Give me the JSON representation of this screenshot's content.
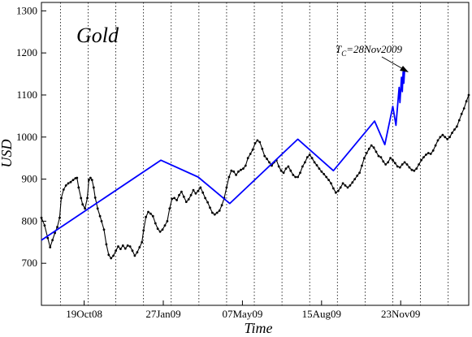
{
  "chart_data": {
    "type": "line",
    "title": "Gold",
    "xlabel": "Time",
    "ylabel": "USD",
    "ylim": [
      600,
      1320
    ],
    "xlim": [
      "2008-08-26",
      "2010-02-17"
    ],
    "yticks": [
      700,
      800,
      900,
      1000,
      1100,
      1200,
      1300
    ],
    "xtick_labels": [
      "19Oct08",
      "27Jan09",
      "07May09",
      "15Aug09",
      "23Nov09"
    ],
    "xtick_dates": [
      "2008-10-19",
      "2009-01-27",
      "2009-05-07",
      "2009-08-15",
      "2009-11-23"
    ],
    "grid_x_dates": [
      "2008-09-19",
      "2008-10-24",
      "2008-11-28",
      "2009-01-02",
      "2009-02-06",
      "2009-03-13",
      "2009-04-17",
      "2009-05-22",
      "2009-06-26",
      "2009-07-31",
      "2009-09-04",
      "2009-10-09",
      "2009-11-13",
      "2009-12-18",
      "2010-01-22"
    ],
    "annotation": {
      "prefix": "T",
      "subscript": "C",
      "suffix": "=28Nov2009",
      "date": "2009-11-28",
      "value": 1162
    },
    "series": [
      {
        "color": "#000000",
        "style": "line-dots",
        "points": [
          [
            "2008-08-26",
            808
          ],
          [
            "2008-08-30",
            790
          ],
          [
            "2008-09-03",
            760
          ],
          [
            "2008-09-06",
            738
          ],
          [
            "2008-09-09",
            755
          ],
          [
            "2008-09-12",
            772
          ],
          [
            "2008-09-15",
            786
          ],
          [
            "2008-09-18",
            808
          ],
          [
            "2008-09-20",
            855
          ],
          [
            "2008-09-23",
            875
          ],
          [
            "2008-09-26",
            885
          ],
          [
            "2008-09-29",
            890
          ],
          [
            "2008-10-02",
            893
          ],
          [
            "2008-10-05",
            898
          ],
          [
            "2008-10-08",
            902
          ],
          [
            "2008-10-10",
            903
          ],
          [
            "2008-10-12",
            880
          ],
          [
            "2008-10-15",
            855
          ],
          [
            "2008-10-17",
            840
          ],
          [
            "2008-10-20",
            830
          ],
          [
            "2008-10-23",
            855
          ],
          [
            "2008-10-25",
            898
          ],
          [
            "2008-10-27",
            903
          ],
          [
            "2008-10-29",
            898
          ],
          [
            "2008-10-31",
            880
          ],
          [
            "2008-11-02",
            856
          ],
          [
            "2008-11-05",
            830
          ],
          [
            "2008-11-08",
            812
          ],
          [
            "2008-11-10",
            800
          ],
          [
            "2008-11-13",
            780
          ],
          [
            "2008-11-16",
            745
          ],
          [
            "2008-11-19",
            720
          ],
          [
            "2008-11-22",
            712
          ],
          [
            "2008-11-25",
            718
          ],
          [
            "2008-11-28",
            730
          ],
          [
            "2008-12-01",
            740
          ],
          [
            "2008-12-04",
            734
          ],
          [
            "2008-12-07",
            742
          ],
          [
            "2008-12-10",
            735
          ],
          [
            "2008-12-13",
            742
          ],
          [
            "2008-12-16",
            740
          ],
          [
            "2008-12-19",
            730
          ],
          [
            "2008-12-22",
            718
          ],
          [
            "2008-12-25",
            726
          ],
          [
            "2008-12-28",
            738
          ],
          [
            "2008-12-31",
            750
          ],
          [
            "2009-01-02",
            778
          ],
          [
            "2009-01-05",
            810
          ],
          [
            "2009-01-08",
            822
          ],
          [
            "2009-01-11",
            818
          ],
          [
            "2009-01-14",
            812
          ],
          [
            "2009-01-17",
            795
          ],
          [
            "2009-01-20",
            782
          ],
          [
            "2009-01-23",
            775
          ],
          [
            "2009-01-26",
            780
          ],
          [
            "2009-01-29",
            790
          ],
          [
            "2009-02-01",
            800
          ],
          [
            "2009-02-04",
            830
          ],
          [
            "2009-02-07",
            853
          ],
          [
            "2009-02-10",
            855
          ],
          [
            "2009-02-13",
            850
          ],
          [
            "2009-02-16",
            862
          ],
          [
            "2009-02-19",
            870
          ],
          [
            "2009-02-22",
            858
          ],
          [
            "2009-02-25",
            846
          ],
          [
            "2009-02-28",
            852
          ],
          [
            "2009-03-03",
            862
          ],
          [
            "2009-03-06",
            874
          ],
          [
            "2009-03-09",
            866
          ],
          [
            "2009-03-12",
            872
          ],
          [
            "2009-03-15",
            880
          ],
          [
            "2009-03-18",
            868
          ],
          [
            "2009-03-21",
            855
          ],
          [
            "2009-03-24",
            845
          ],
          [
            "2009-03-27",
            832
          ],
          [
            "2009-03-30",
            820
          ],
          [
            "2009-04-02",
            816
          ],
          [
            "2009-04-05",
            820
          ],
          [
            "2009-04-08",
            825
          ],
          [
            "2009-04-11",
            838
          ],
          [
            "2009-04-14",
            855
          ],
          [
            "2009-04-17",
            880
          ],
          [
            "2009-04-20",
            905
          ],
          [
            "2009-04-23",
            920
          ],
          [
            "2009-04-26",
            918
          ],
          [
            "2009-04-29",
            910
          ],
          [
            "2009-05-02",
            918
          ],
          [
            "2009-05-05",
            922
          ],
          [
            "2009-05-08",
            925
          ],
          [
            "2009-05-11",
            932
          ],
          [
            "2009-05-14",
            950
          ],
          [
            "2009-05-17",
            960
          ],
          [
            "2009-05-20",
            970
          ],
          [
            "2009-05-23",
            985
          ],
          [
            "2009-05-26",
            992
          ],
          [
            "2009-05-29",
            988
          ],
          [
            "2009-06-01",
            972
          ],
          [
            "2009-06-04",
            955
          ],
          [
            "2009-06-07",
            948
          ],
          [
            "2009-06-10",
            940
          ],
          [
            "2009-06-13",
            932
          ],
          [
            "2009-06-16",
            940
          ],
          [
            "2009-06-19",
            945
          ],
          [
            "2009-06-22",
            930
          ],
          [
            "2009-06-25",
            920
          ],
          [
            "2009-06-28",
            915
          ],
          [
            "2009-07-01",
            925
          ],
          [
            "2009-07-04",
            930
          ],
          [
            "2009-07-07",
            920
          ],
          [
            "2009-07-10",
            910
          ],
          [
            "2009-07-13",
            905
          ],
          [
            "2009-07-16",
            905
          ],
          [
            "2009-07-19",
            915
          ],
          [
            "2009-07-22",
            930
          ],
          [
            "2009-07-25",
            940
          ],
          [
            "2009-07-28",
            952
          ],
          [
            "2009-07-31",
            958
          ],
          [
            "2009-08-03",
            950
          ],
          [
            "2009-08-06",
            940
          ],
          [
            "2009-08-09",
            933
          ],
          [
            "2009-08-12",
            925
          ],
          [
            "2009-08-15",
            918
          ],
          [
            "2009-08-18",
            912
          ],
          [
            "2009-08-21",
            905
          ],
          [
            "2009-08-24",
            898
          ],
          [
            "2009-08-27",
            890
          ],
          [
            "2009-08-30",
            878
          ],
          [
            "2009-09-02",
            868
          ],
          [
            "2009-09-05",
            872
          ],
          [
            "2009-09-08",
            880
          ],
          [
            "2009-09-11",
            890
          ],
          [
            "2009-09-14",
            885
          ],
          [
            "2009-09-17",
            880
          ],
          [
            "2009-09-20",
            885
          ],
          [
            "2009-09-23",
            892
          ],
          [
            "2009-09-26",
            900
          ],
          [
            "2009-09-29",
            908
          ],
          [
            "2009-10-02",
            915
          ],
          [
            "2009-10-05",
            932
          ],
          [
            "2009-10-08",
            950
          ],
          [
            "2009-10-11",
            962
          ],
          [
            "2009-10-14",
            972
          ],
          [
            "2009-10-17",
            980
          ],
          [
            "2009-10-20",
            975
          ],
          [
            "2009-10-23",
            965
          ],
          [
            "2009-10-26",
            955
          ],
          [
            "2009-10-29",
            952
          ],
          [
            "2009-11-01",
            942
          ],
          [
            "2009-11-04",
            935
          ],
          [
            "2009-11-07",
            940
          ],
          [
            "2009-11-10",
            950
          ],
          [
            "2009-11-13",
            945
          ],
          [
            "2009-11-16",
            938
          ],
          [
            "2009-11-19",
            930
          ],
          [
            "2009-11-22",
            928
          ],
          [
            "2009-11-25",
            935
          ],
          [
            "2009-11-28",
            940
          ],
          [
            "2009-12-01",
            935
          ],
          [
            "2009-12-04",
            928
          ],
          [
            "2009-12-07",
            922
          ],
          [
            "2009-12-10",
            920
          ],
          [
            "2009-12-13",
            925
          ],
          [
            "2009-12-16",
            935
          ],
          [
            "2009-12-19",
            945
          ],
          [
            "2009-12-22",
            952
          ],
          [
            "2009-12-25",
            958
          ],
          [
            "2009-12-28",
            962
          ],
          [
            "2009-12-31",
            960
          ],
          [
            "2010-01-03",
            968
          ],
          [
            "2010-01-06",
            980
          ],
          [
            "2010-01-09",
            992
          ],
          [
            "2010-01-12",
            1000
          ],
          [
            "2010-01-15",
            1005
          ],
          [
            "2010-01-18",
            1000
          ],
          [
            "2010-01-21",
            995
          ],
          [
            "2010-01-24",
            1000
          ],
          [
            "2010-01-27",
            1010
          ],
          [
            "2010-01-30",
            1018
          ],
          [
            "2010-02-02",
            1025
          ],
          [
            "2010-02-05",
            1040
          ],
          [
            "2010-02-08",
            1055
          ],
          [
            "2010-02-11",
            1068
          ],
          [
            "2010-02-14",
            1085
          ],
          [
            "2010-02-17",
            1100
          ]
        ]
      },
      {
        "color": "#0000ff",
        "style": "line",
        "points": [
          [
            "2008-08-26",
            755
          ],
          [
            "2009-01-24",
            945
          ],
          [
            "2009-03-12",
            905
          ],
          [
            "2009-04-21",
            842
          ],
          [
            "2009-07-16",
            995
          ],
          [
            "2009-08-30",
            920
          ],
          [
            "2009-10-21",
            1038
          ],
          [
            "2009-11-03",
            982
          ],
          [
            "2009-11-13",
            1073
          ],
          [
            "2009-11-17",
            1028
          ],
          [
            "2009-11-21",
            1118
          ],
          [
            "2009-11-22",
            1082
          ],
          [
            "2009-11-24",
            1142
          ],
          [
            "2009-11-25",
            1108
          ],
          [
            "2009-11-26",
            1155
          ],
          [
            "2009-11-27",
            1128
          ],
          [
            "2009-11-28",
            1162
          ]
        ]
      }
    ]
  }
}
